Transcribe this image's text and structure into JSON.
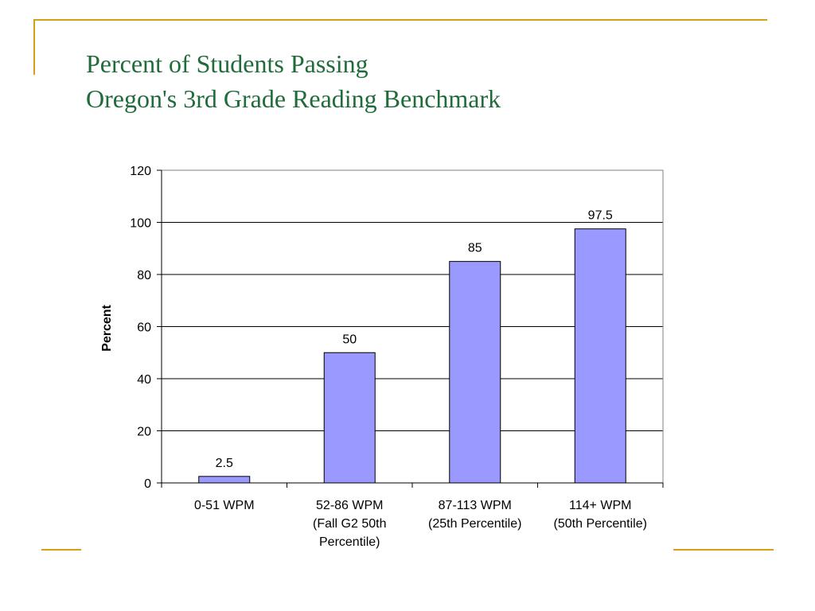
{
  "slide": {
    "title_line1": "Percent of Students Passing",
    "title_line2": "Oregon's 3rd Grade Reading Benchmark"
  },
  "colors": {
    "title": "#1F6B3A",
    "decoration": "#D4A017",
    "bar_fill": "#9999FF",
    "bar_stroke": "#000000"
  },
  "chart_data": {
    "type": "bar",
    "title": "",
    "xlabel": "",
    "ylabel": "Percent",
    "ylim": [
      0,
      120
    ],
    "yticks": [
      0,
      20,
      40,
      60,
      80,
      100,
      120
    ],
    "grid": true,
    "categories": [
      [
        "0-51 WPM"
      ],
      [
        "52-86 WPM",
        "(Fall G2 50th",
        "Percentile)"
      ],
      [
        "87-113 WPM",
        "(25th Percentile)"
      ],
      [
        "114+ WPM",
        "(50th Percentile)"
      ]
    ],
    "values": [
      2.5,
      50,
      85,
      97.5
    ],
    "data_labels": [
      "2.5",
      "50",
      "85",
      "97.5"
    ]
  }
}
